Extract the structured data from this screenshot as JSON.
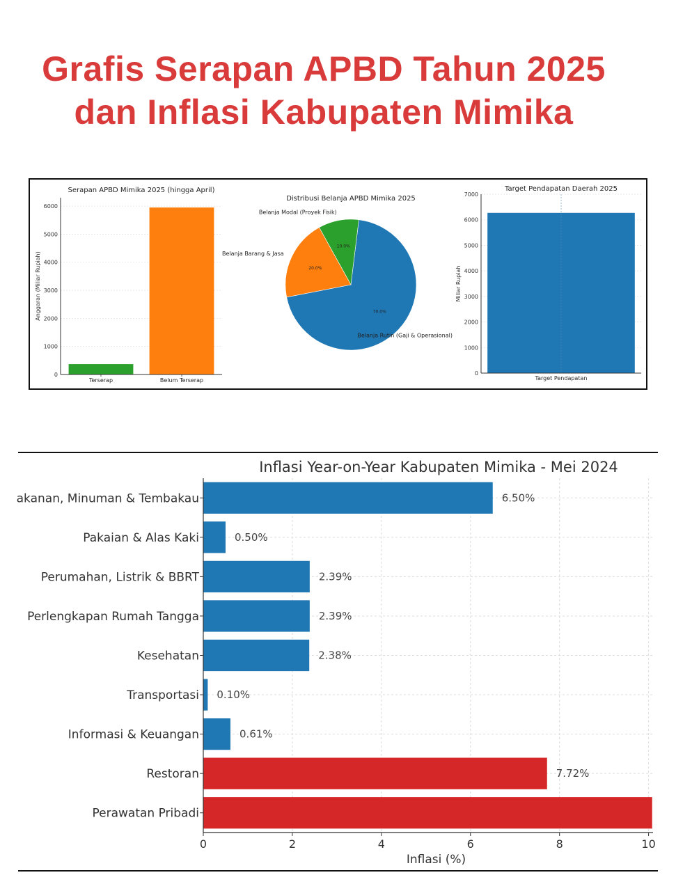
{
  "headline": {
    "line1": "Grafis Serapan APBD Tahun 2025",
    "line2": "dan Inflasi Kabupaten Mimika",
    "color": "#d93a3a"
  },
  "chart_data": [
    {
      "type": "bar",
      "title": "Serapan APBD Mimika 2025 (hingga April)",
      "ylabel": "Anggaran (Miliar Rupiah)",
      "xlabel": "",
      "categories": [
        "Terserap",
        "Belum Terserap"
      ],
      "values": [
        370,
        5950
      ],
      "colors": [
        "#2ca02c",
        "#ff7f0e"
      ],
      "yticks": [
        "0",
        "1000",
        "2000",
        "3000",
        "4000",
        "5000",
        "6000"
      ],
      "ylim": [
        0,
        6300
      ],
      "grid": true
    },
    {
      "type": "pie",
      "title": "Distribusi Belanja APBD Mimika 2025",
      "labels": [
        "Belanja Rutin (Gaji & Operasional)",
        "Belanja Modal (Proyek Fisik)",
        "Belanja Barang & Jasa"
      ],
      "values": [
        70,
        10,
        20
      ],
      "value_labels": [
        "70.0%",
        "10.0%",
        "20.0%"
      ],
      "colors": [
        "#1f77b4",
        "#2ca02c",
        "#ff7f0e"
      ]
    },
    {
      "type": "bar",
      "title": "Target Pendapatan Daerah 2025",
      "ylabel": "Miliar Rupiah",
      "xlabel": "",
      "categories": [
        "Target Pendapatan"
      ],
      "values": [
        6270
      ],
      "colors": [
        "#1f77b4"
      ],
      "yticks": [
        "0",
        "1000",
        "2000",
        "3000",
        "4000",
        "5000",
        "6000",
        "7000"
      ],
      "ylim": [
        0,
        7000
      ],
      "grid": true
    },
    {
      "type": "bar",
      "orientation": "horizontal",
      "title": "Inflasi Year-on-Year Kabupaten Mimika - Mei 2024",
      "xlabel": "Inflasi (%)",
      "ylabel": "",
      "categories": [
        "akanan, Minuman & Tembakau",
        "Pakaian & Alas Kaki",
        "Perumahan, Listrik & BBRT",
        "Perlengkapan Rumah Tangga",
        "Kesehatan",
        "Transportasi",
        "Informasi & Keuangan",
        "Restoran",
        "Perawatan Pribadi"
      ],
      "values": [
        6.5,
        0.5,
        2.39,
        2.39,
        2.38,
        0.1,
        0.61,
        7.72,
        10.08
      ],
      "value_labels": [
        "6.50%",
        "0.50%",
        "2.39%",
        "2.39%",
        "2.38%",
        "0.10%",
        "0.61%",
        "7.72%",
        ""
      ],
      "colors": [
        "#1f77b4",
        "#1f77b4",
        "#1f77b4",
        "#1f77b4",
        "#1f77b4",
        "#1f77b4",
        "#1f77b4",
        "#d62728",
        "#d62728"
      ],
      "xticks": [
        "0",
        "2",
        "4",
        "6",
        "8",
        "10"
      ],
      "xlim": [
        0,
        10.1
      ],
      "grid": true
    }
  ]
}
